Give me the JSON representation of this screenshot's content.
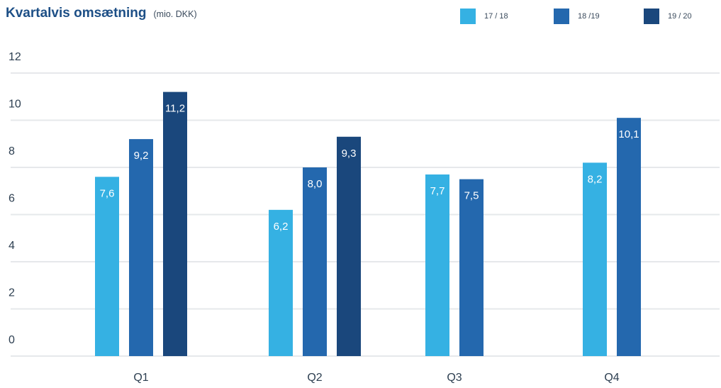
{
  "chart_data": {
    "type": "bar",
    "title": "Kvartalvis omsætning",
    "subtitle": "(mio. DKK)",
    "categories": [
      "Q1",
      "Q2",
      "Q3",
      "Q4"
    ],
    "series": [
      {
        "name": "17 / 18",
        "color": "#35b1e3",
        "values": [
          7.6,
          6.2,
          7.7,
          8.2
        ],
        "labels": [
          "7,6",
          "6,2",
          "7,7",
          "8,2"
        ]
      },
      {
        "name": "18 /19",
        "color": "#2468ae",
        "values": [
          9.2,
          8.0,
          7.5,
          10.1
        ],
        "labels": [
          "9,2",
          "8,0",
          "7,5",
          "10,1"
        ]
      },
      {
        "name": "19 / 20",
        "color": "#1a477c",
        "values": [
          11.2,
          9.3,
          null,
          null
        ],
        "labels": [
          "11,2",
          "9,3",
          "",
          ""
        ]
      }
    ],
    "yticks": [
      "0",
      "2",
      "4",
      "6",
      "8",
      "10",
      "12"
    ],
    "ylim": [
      0,
      12
    ],
    "grid": true,
    "legend_position": "top-right"
  }
}
